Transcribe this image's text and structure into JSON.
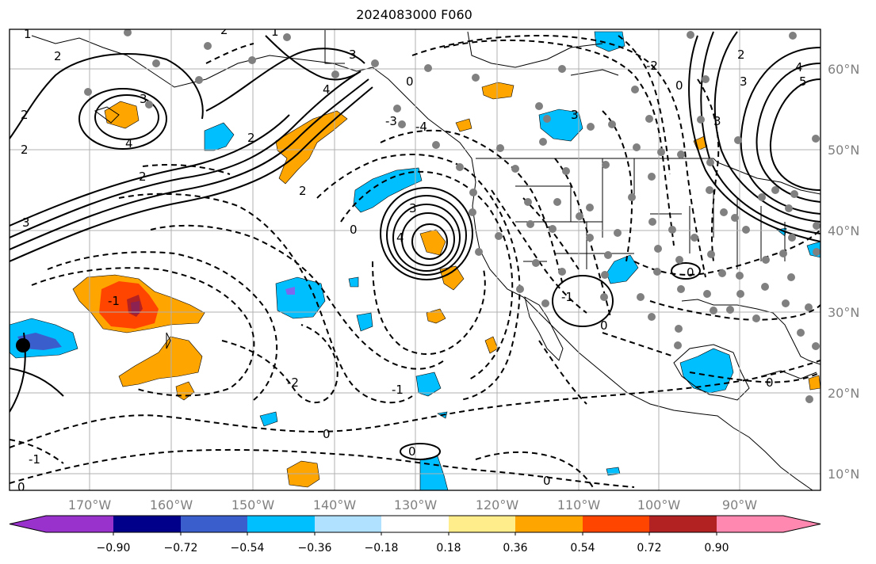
{
  "title": "2024083000 F060",
  "longitude_labels": [
    "170°W",
    "160°W",
    "150°W",
    "140°W",
    "130°W",
    "120°W",
    "110°W",
    "100°W",
    "90°W"
  ],
  "latitude_labels": [
    "60°N",
    "50°N",
    "40°N",
    "30°N",
    "20°N",
    "10°N"
  ],
  "colorbar": {
    "colors": [
      "#9932cc",
      "#00008b",
      "#3a5fcd",
      "#00bfff",
      "#b0e2ff",
      "#ffffff",
      "#ffec8b",
      "#ffa500",
      "#ff4500",
      "#b22222",
      "#ff88b0"
    ],
    "ticks": [
      "−0.90",
      "−0.72",
      "−0.54",
      "−0.36",
      "−0.18",
      "0.18",
      "0.36",
      "0.54",
      "0.72",
      "0.90"
    ]
  },
  "contour_labels": {
    "pos_1": "1",
    "pos_2": "2",
    "pos_3": "3",
    "pos_4": "4",
    "pos_5": "5",
    "zero": "0",
    "neg_1": "-1",
    "neg_2": "-2",
    "neg_3": "-3",
    "neg_4": "-4"
  }
}
